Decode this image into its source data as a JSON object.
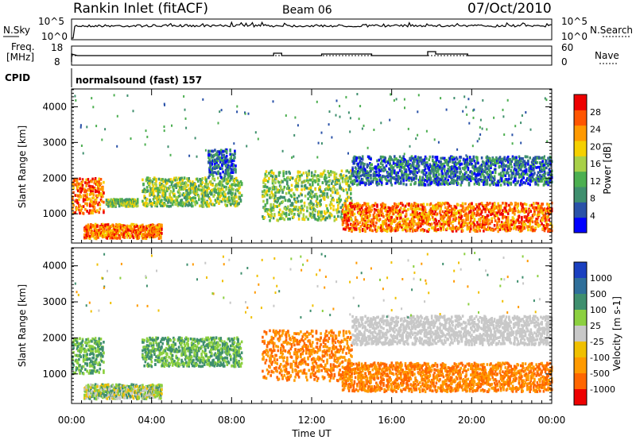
{
  "header": {
    "station": "Rankin Inlet (fitACF)",
    "beam": "Beam 06",
    "date": "07/Oct/2010"
  },
  "strip_labels": {
    "nsky": "N.Sky",
    "nsearch": "N.Search",
    "freq_line1": "Freq.",
    "freq_line2": "[MHz]",
    "nave": "Nave",
    "cpid": "CPID",
    "cpid_value": "normalsound (fast) 157",
    "noise_ticks_left": [
      "10^5",
      "10^0"
    ],
    "noise_ticks_right": [
      "10^5",
      "10^0"
    ],
    "freq_ticks": [
      "18",
      "8"
    ],
    "nave_ticks": [
      "60",
      "0"
    ]
  },
  "colors": {
    "power": [
      "#0000ff",
      "#2a52a8",
      "#3f8f6e",
      "#4caf50",
      "#a8d048",
      "#f5d000",
      "#ff9900",
      "#ff5500",
      "#ee0000"
    ],
    "velocity": [
      "#1a40c0",
      "#2f6f9a",
      "#3f8f6e",
      "#8cd040",
      "#c8c8c8",
      "#f0c000",
      "#ff9a00",
      "#ff6600",
      "#ee0000"
    ]
  },
  "chart_data": [
    {
      "type": "heatmap",
      "name": "power",
      "xlabel": "",
      "ylabel": "Slant Range [km]",
      "xlim": [
        "00:00",
        "24:00"
      ],
      "ylim": [
        180,
        4500
      ],
      "y_ticks": [
        "1000",
        "2000",
        "3000",
        "4000"
      ],
      "colorbar_label": "Power [dB]",
      "colorbar_ticks": [
        "4",
        "8",
        "12",
        "16",
        "20",
        "24",
        "28"
      ],
      "regions": [
        {
          "t0": 0.0,
          "t1": 1.6,
          "r0": 1000,
          "r1": 2000,
          "level": "strong"
        },
        {
          "t0": 0.6,
          "t1": 4.5,
          "r0": 300,
          "r1": 700,
          "level": "strong"
        },
        {
          "t0": 1.7,
          "t1": 3.3,
          "r0": 1200,
          "r1": 1400,
          "level": "medium"
        },
        {
          "t0": 3.5,
          "t1": 8.5,
          "r0": 1200,
          "r1": 2000,
          "level": "medium"
        },
        {
          "t0": 6.8,
          "t1": 8.2,
          "r0": 2000,
          "r1": 2800,
          "level": "weak"
        },
        {
          "t0": 9.5,
          "t1": 14.0,
          "r0": 800,
          "r1": 2200,
          "level": "medium"
        },
        {
          "t0": 13.5,
          "t1": 24.0,
          "r0": 500,
          "r1": 1300,
          "level": "strong"
        },
        {
          "t0": 14.0,
          "t1": 24.0,
          "r0": 1800,
          "r1": 2600,
          "level": "weak"
        }
      ]
    },
    {
      "type": "heatmap",
      "name": "velocity",
      "xlabel": "Time UT",
      "ylabel": "Slant Range [km]",
      "xlim": [
        "00:00",
        "24:00"
      ],
      "ylim": [
        180,
        4500
      ],
      "x_ticks": [
        "00:00",
        "04:00",
        "08:00",
        "12:00",
        "16:00",
        "20:00",
        "00:00"
      ],
      "y_ticks": [
        "1000",
        "2000",
        "3000",
        "4000"
      ],
      "colorbar_label": "Velocity [m s-1]",
      "colorbar_ticks": [
        "1000",
        "500",
        "100",
        "25",
        "-25",
        "-100",
        "-500",
        "-1000"
      ],
      "regions": [
        {
          "t0": 0.0,
          "t1": 1.6,
          "r0": 1000,
          "r1": 2000,
          "level": "positive"
        },
        {
          "t0": 0.6,
          "t1": 4.5,
          "r0": 300,
          "r1": 700,
          "level": "mixed"
        },
        {
          "t0": 3.5,
          "t1": 8.5,
          "r0": 1200,
          "r1": 2000,
          "level": "positive"
        },
        {
          "t0": 9.5,
          "t1": 14.0,
          "r0": 800,
          "r1": 2200,
          "level": "negative"
        },
        {
          "t0": 13.5,
          "t1": 24.0,
          "r0": 500,
          "r1": 1300,
          "level": "negative"
        },
        {
          "t0": 14.0,
          "t1": 24.0,
          "r0": 1800,
          "r1": 2600,
          "level": "near-zero"
        }
      ]
    }
  ]
}
